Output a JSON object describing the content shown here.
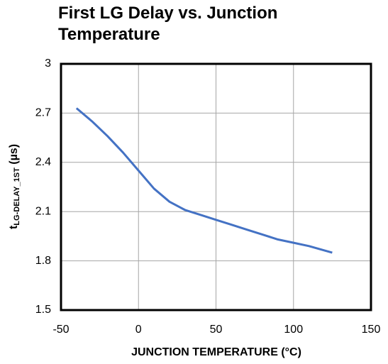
{
  "chart_data": {
    "type": "line",
    "title": "First LG Delay vs. Junction Temperature",
    "x_label": "JUNCTION  TEMPERATURE  (°C)",
    "y_label": {
      "main": "t",
      "sub": "LG-DELAY_1ST",
      "rest": " (µs)"
    },
    "x": [
      -40,
      -30,
      -20,
      -10,
      0,
      10,
      20,
      30,
      40,
      50,
      60,
      70,
      80,
      90,
      100,
      110,
      125
    ],
    "series": [
      {
        "name": "tLG-DELAY_1ST",
        "color": "#4472c4",
        "values": [
          2.73,
          2.65,
          2.56,
          2.46,
          2.35,
          2.24,
          2.16,
          2.11,
          2.08,
          2.05,
          2.02,
          1.99,
          1.96,
          1.93,
          1.91,
          1.89,
          1.85
        ]
      }
    ],
    "xlim": [
      -50,
      150
    ],
    "xticks": [
      -50,
      0,
      50,
      100,
      150
    ],
    "ylim": [
      1.5,
      3
    ],
    "yticks": [
      1.5,
      1.8,
      2.1,
      2.4,
      2.7,
      3
    ],
    "grid": true
  }
}
